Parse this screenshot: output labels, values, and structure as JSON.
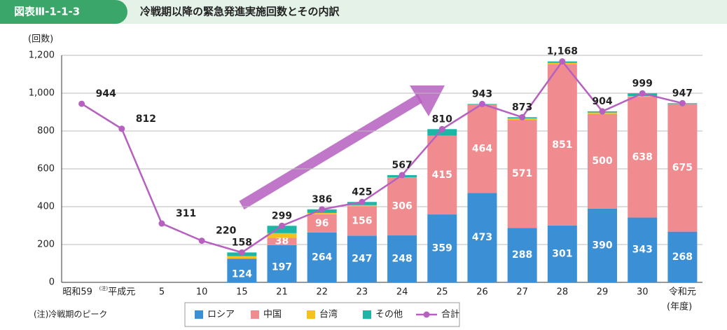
{
  "chart_data": {
    "type": "stacked_bar_line",
    "figure_label": "図表Ⅲ-1-1-3",
    "title": "冷戦期以降の緊急発進実施回数とその内訳",
    "y_axis_label": "(回数)",
    "x_axis_label": "(年度)",
    "note_marker": "(注)",
    "note": "(注)冷戦期のピーク",
    "categories": [
      "昭和59",
      "平成元",
      "5",
      "10",
      "15",
      "21",
      "22",
      "23",
      "24",
      "25",
      "26",
      "27",
      "28",
      "29",
      "30",
      "令和元"
    ],
    "ylim": [
      0,
      1200
    ],
    "yticks": [
      0,
      200,
      400,
      600,
      800,
      {
        "value": 1000,
        "label": "1,000"
      },
      {
        "value": 1200,
        "label": "1,200"
      }
    ],
    "series": [
      {
        "name": "ロシア",
        "color": "#3b8fd4",
        "values": [
          null,
          null,
          null,
          null,
          124,
          197,
          264,
          247,
          248,
          359,
          473,
          288,
          301,
          390,
          343,
          268
        ],
        "value_labels": [
          null,
          null,
          null,
          null,
          "124",
          "197",
          "264",
          "247",
          "248",
          "359",
          "473",
          "288",
          "301",
          "390",
          "343",
          "268"
        ]
      },
      {
        "name": "中国",
        "color": "#f08c8f",
        "values": [
          null,
          null,
          null,
          null,
          2,
          38,
          96,
          156,
          306,
          415,
          464,
          571,
          851,
          500,
          638,
          675
        ],
        "value_labels": [
          null,
          null,
          null,
          null,
          null,
          "38",
          "96",
          "156",
          "306",
          "415",
          "464",
          "571",
          "851",
          "500",
          "638",
          "675"
        ]
      },
      {
        "name": "台湾",
        "color": "#f6c21a",
        "values": [
          null,
          null,
          null,
          null,
          13,
          25,
          7,
          5,
          1,
          1,
          2,
          8,
          8,
          8,
          4,
          0
        ]
      },
      {
        "name": "その他",
        "color": "#1db5a5",
        "values": [
          null,
          null,
          null,
          null,
          19,
          39,
          19,
          17,
          12,
          35,
          4,
          6,
          8,
          6,
          14,
          4
        ]
      }
    ],
    "line": {
      "name": "合計",
      "color": "#b660c0",
      "values": [
        944,
        812,
        311,
        220,
        158,
        299,
        386,
        425,
        567,
        810,
        943,
        873,
        1168,
        904,
        999,
        947
      ],
      "value_labels": [
        "944",
        "812",
        "311",
        "220",
        "158",
        "299",
        "386",
        "425",
        "567",
        "810",
        "943",
        "873",
        "1,168",
        "904",
        "999",
        "947"
      ]
    }
  }
}
